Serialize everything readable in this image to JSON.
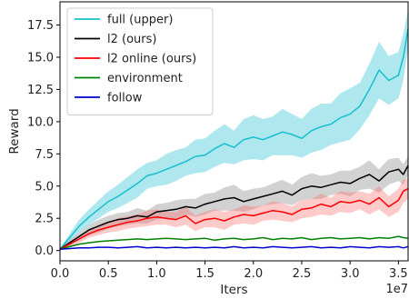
{
  "chart_data": {
    "type": "line",
    "xlabel": "Iters",
    "ylabel": "Reward",
    "x_offset_label": "1e7",
    "xlim": [
      0.0,
      3.6
    ],
    "ylim": [
      -0.8,
      19.3
    ],
    "x_ticks": [
      0.0,
      0.5,
      1.0,
      1.5,
      2.0,
      2.5,
      3.0,
      3.5
    ],
    "x_tick_labels": [
      "0.0",
      "0.5",
      "1.0",
      "1.5",
      "2.0",
      "2.5",
      "3.0",
      "3.5"
    ],
    "y_ticks": [
      0.0,
      2.5,
      5.0,
      7.5,
      10.0,
      12.5,
      15.0,
      17.5
    ],
    "y_tick_labels": [
      "0.0",
      "2.5",
      "5.0",
      "7.5",
      "10.0",
      "12.5",
      "15.0",
      "17.5"
    ],
    "grid": false,
    "legend_position": "upper-left",
    "series": [
      {
        "name": "full (upper)",
        "color": "#17becf",
        "band_color": "#17becf",
        "x": [
          0.0,
          0.1,
          0.2,
          0.3,
          0.4,
          0.5,
          0.6,
          0.7,
          0.8,
          0.9,
          1.0,
          1.1,
          1.2,
          1.3,
          1.4,
          1.5,
          1.6,
          1.7,
          1.8,
          1.9,
          2.0,
          2.1,
          2.2,
          2.3,
          2.4,
          2.5,
          2.6,
          2.7,
          2.8,
          2.9,
          3.0,
          3.1,
          3.2,
          3.3,
          3.4,
          3.5,
          3.55,
          3.6
        ],
        "y": [
          0.1,
          1.0,
          1.9,
          2.6,
          3.2,
          3.8,
          4.2,
          4.7,
          5.2,
          5.8,
          6.0,
          6.3,
          6.6,
          6.9,
          7.3,
          7.4,
          7.9,
          8.3,
          8.0,
          8.6,
          8.8,
          8.6,
          8.9,
          9.2,
          9.0,
          8.7,
          9.3,
          9.6,
          9.8,
          10.3,
          10.6,
          11.2,
          12.5,
          14.0,
          13.2,
          13.6,
          15.0,
          17.2
        ],
        "band": [
          0.1,
          0.3,
          0.5,
          0.6,
          0.7,
          0.8,
          0.9,
          1.0,
          1.1,
          1.0,
          1.0,
          1.2,
          1.2,
          1.1,
          1.3,
          1.3,
          1.4,
          1.5,
          1.3,
          1.6,
          1.7,
          1.6,
          1.5,
          1.8,
          1.6,
          1.5,
          1.7,
          1.8,
          1.6,
          1.9,
          2.0,
          1.8,
          2.0,
          2.2,
          1.9,
          1.8,
          1.8,
          1.5
        ]
      },
      {
        "name": "l2 (ours)",
        "color": "#000000",
        "band_color": "#7f7f7f",
        "x": [
          0.0,
          0.1,
          0.2,
          0.3,
          0.4,
          0.5,
          0.6,
          0.7,
          0.8,
          0.9,
          1.0,
          1.1,
          1.2,
          1.3,
          1.4,
          1.5,
          1.6,
          1.7,
          1.8,
          1.9,
          2.0,
          2.1,
          2.2,
          2.3,
          2.4,
          2.5,
          2.6,
          2.7,
          2.8,
          2.9,
          3.0,
          3.1,
          3.2,
          3.3,
          3.4,
          3.5,
          3.55,
          3.6
        ],
        "y": [
          0.1,
          0.6,
          1.1,
          1.6,
          1.9,
          2.2,
          2.4,
          2.5,
          2.7,
          2.6,
          3.0,
          3.1,
          3.2,
          3.4,
          3.3,
          3.6,
          3.8,
          4.0,
          4.1,
          3.8,
          4.0,
          4.2,
          4.4,
          4.6,
          4.3,
          4.8,
          5.0,
          4.9,
          5.1,
          5.3,
          5.2,
          5.6,
          5.9,
          5.4,
          6.1,
          6.3,
          5.9,
          6.6
        ],
        "band": [
          0.1,
          0.2,
          0.3,
          0.4,
          0.5,
          0.5,
          0.5,
          0.5,
          0.6,
          0.5,
          0.6,
          0.6,
          0.7,
          0.6,
          0.7,
          0.8,
          0.7,
          0.9,
          1.0,
          0.8,
          0.8,
          0.7,
          0.8,
          0.9,
          0.8,
          0.9,
          1.0,
          0.9,
          0.8,
          0.9,
          1.0,
          0.9,
          1.1,
          0.9,
          1.0,
          0.9,
          0.8,
          0.7
        ]
      },
      {
        "name": "l2 online (ours)",
        "color": "#ff0000",
        "band_color": "#ff6666",
        "x": [
          0.0,
          0.1,
          0.2,
          0.3,
          0.4,
          0.5,
          0.6,
          0.7,
          0.8,
          0.9,
          1.0,
          1.1,
          1.2,
          1.3,
          1.4,
          1.5,
          1.6,
          1.7,
          1.8,
          1.9,
          2.0,
          2.1,
          2.2,
          2.3,
          2.4,
          2.5,
          2.6,
          2.7,
          2.8,
          2.9,
          3.0,
          3.1,
          3.2,
          3.3,
          3.4,
          3.5,
          3.55,
          3.6
        ],
        "y": [
          0.1,
          0.5,
          0.9,
          1.3,
          1.6,
          1.8,
          2.0,
          2.2,
          2.3,
          2.5,
          2.6,
          2.5,
          2.4,
          2.7,
          2.1,
          2.4,
          2.5,
          2.3,
          2.6,
          2.8,
          2.7,
          2.9,
          3.1,
          3.0,
          2.8,
          3.2,
          3.3,
          3.6,
          3.4,
          3.8,
          3.7,
          3.9,
          3.6,
          4.1,
          3.4,
          3.9,
          4.6,
          4.8
        ],
        "band": [
          0.1,
          0.2,
          0.3,
          0.3,
          0.4,
          0.4,
          0.5,
          0.5,
          0.5,
          0.6,
          0.6,
          0.5,
          0.6,
          0.7,
          0.6,
          0.6,
          0.7,
          0.7,
          0.6,
          0.7,
          0.7,
          0.6,
          0.7,
          0.7,
          0.6,
          0.7,
          0.7,
          0.8,
          0.7,
          0.8,
          0.8,
          0.7,
          0.8,
          0.9,
          0.8,
          0.9,
          0.9,
          0.8
        ]
      },
      {
        "name": "environment",
        "color": "#008000",
        "x": [
          0.0,
          0.1,
          0.2,
          0.3,
          0.4,
          0.5,
          0.6,
          0.7,
          0.8,
          0.9,
          1.0,
          1.1,
          1.2,
          1.3,
          1.4,
          1.5,
          1.6,
          1.7,
          1.8,
          1.9,
          2.0,
          2.1,
          2.2,
          2.3,
          2.4,
          2.5,
          2.6,
          2.7,
          2.8,
          2.9,
          3.0,
          3.1,
          3.2,
          3.3,
          3.4,
          3.5,
          3.55,
          3.6
        ],
        "y": [
          0.1,
          0.3,
          0.5,
          0.6,
          0.7,
          0.75,
          0.8,
          0.85,
          0.9,
          0.85,
          0.9,
          0.95,
          0.9,
          0.85,
          0.9,
          0.95,
          0.8,
          0.9,
          0.95,
          0.85,
          0.9,
          1.0,
          0.85,
          0.95,
          0.9,
          1.0,
          0.85,
          0.95,
          1.0,
          0.9,
          0.95,
          1.0,
          0.9,
          1.0,
          0.95,
          1.1,
          1.0,
          0.95
        ]
      },
      {
        "name": "follow",
        "color": "#0000cc",
        "x": [
          0.0,
          0.1,
          0.2,
          0.3,
          0.4,
          0.5,
          0.6,
          0.7,
          0.8,
          0.9,
          1.0,
          1.1,
          1.2,
          1.3,
          1.4,
          1.5,
          1.6,
          1.7,
          1.8,
          1.9,
          2.0,
          2.1,
          2.2,
          2.3,
          2.4,
          2.5,
          2.6,
          2.7,
          2.8,
          2.9,
          3.0,
          3.1,
          3.2,
          3.3,
          3.4,
          3.5,
          3.55,
          3.6
        ],
        "y": [
          0.1,
          0.15,
          0.2,
          0.2,
          0.25,
          0.25,
          0.2,
          0.25,
          0.3,
          0.2,
          0.25,
          0.2,
          0.25,
          0.2,
          0.25,
          0.2,
          0.25,
          0.2,
          0.3,
          0.2,
          0.25,
          0.2,
          0.3,
          0.25,
          0.2,
          0.25,
          0.3,
          0.2,
          0.25,
          0.2,
          0.3,
          0.25,
          0.2,
          0.3,
          0.25,
          0.3,
          0.2,
          0.3
        ]
      }
    ]
  }
}
